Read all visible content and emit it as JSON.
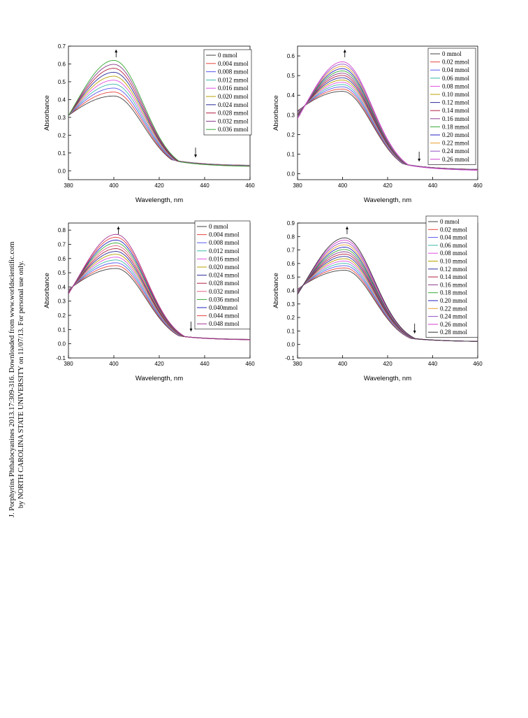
{
  "watermark": {
    "line1": "J. Porphyrins Phthalocyanines 2013.17:309-316. Downloaded from www.worldscientific.com",
    "line2": "by NORTH CAROLINA STATE UNIVERSITY on 11/07/13. For personal use only."
  },
  "chart_data": [
    {
      "type": "line",
      "panel": "top-left",
      "xlabel": "Wavelength, nm",
      "ylabel": "Absorbance",
      "xlim": [
        380,
        460
      ],
      "ylim": [
        -0.05,
        0.7
      ],
      "x_ticks": [
        "380",
        "400",
        "420",
        "440",
        "460"
      ],
      "y_ticks": [
        "0.0",
        "0.1",
        "0.2",
        "0.3",
        "0.4",
        "0.5",
        "0.6",
        "0.7"
      ],
      "legend_position": "top-right",
      "arrows": [
        "up at peak",
        "down at 436 nm"
      ],
      "series_shape": {
        "peak_x": 400,
        "start_y": [
          0.31,
          0.31
        ],
        "peak_y": [
          0.42,
          0.62
        ],
        "tail_y": [
          0.028,
          0.022
        ]
      },
      "series": [
        {
          "name": "0 mmol",
          "color": "#404040"
        },
        {
          "name": "0.004 mmol",
          "color": "#e8453c"
        },
        {
          "name": "0.008 mmol",
          "color": "#5858f0"
        },
        {
          "name": "0.012 mmol",
          "color": "#3cb8a8"
        },
        {
          "name": "0.016 mmol",
          "color": "#e050e0"
        },
        {
          "name": "0.020 mmol",
          "color": "#b8a000"
        },
        {
          "name": "0.024 mmol",
          "color": "#2a2a9a"
        },
        {
          "name": "0.028 mmol",
          "color": "#b02040"
        },
        {
          "name": "0.032 mmol",
          "color": "#8a3a8a"
        },
        {
          "name": "0.036 mmol",
          "color": "#38a838"
        }
      ]
    },
    {
      "type": "line",
      "panel": "top-right",
      "xlabel": "Wavelength, nm",
      "ylabel": "Absorbance",
      "xlim": [
        380,
        460
      ],
      "ylim": [
        -0.03,
        0.65
      ],
      "x_ticks": [
        "380",
        "400",
        "420",
        "440",
        "460"
      ],
      "y_ticks": [
        "0.0",
        "0.1",
        "0.2",
        "0.3",
        "0.4",
        "0.5",
        "0.6"
      ],
      "legend_position": "top-right",
      "arrows": [
        "up at peak",
        "down at 434 nm"
      ],
      "series_shape": {
        "peak_x": 400,
        "start_y": [
          0.32,
          0.28
        ],
        "peak_y": [
          0.42,
          0.57
        ],
        "tail_y": [
          0.02,
          0.015
        ]
      },
      "series": [
        {
          "name": "0 mmol",
          "color": "#404040"
        },
        {
          "name": "0.02 mmol",
          "color": "#e8453c"
        },
        {
          "name": "0.04 mmol",
          "color": "#5858f0"
        },
        {
          "name": "0.06 mmol",
          "color": "#3cb8a8"
        },
        {
          "name": "0.08 mmol",
          "color": "#e050e0"
        },
        {
          "name": "0.10 mmol",
          "color": "#b8a000"
        },
        {
          "name": "0.12 mmol",
          "color": "#2a2a9a"
        },
        {
          "name": "0.14 mmol",
          "color": "#b02040"
        },
        {
          "name": "0.16 mmol",
          "color": "#8a3a8a"
        },
        {
          "name": "0.18 mmol",
          "color": "#38a838"
        },
        {
          "name": "0.20 mmol",
          "color": "#2020c0"
        },
        {
          "name": "0.22 mmol",
          "color": "#e8a030"
        },
        {
          "name": "0.24 mmol",
          "color": "#9050c0"
        },
        {
          "name": "0.26 mmol",
          "color": "#d040d0"
        }
      ]
    },
    {
      "type": "line",
      "panel": "bottom-left",
      "xlabel": "Wavelength, nm",
      "ylabel": "Absorbance",
      "xlim": [
        380,
        460
      ],
      "ylim": [
        -0.1,
        0.85
      ],
      "x_ticks": [
        "380",
        "400",
        "420",
        "440",
        "460"
      ],
      "y_ticks": [
        "-0.1",
        "0.0",
        "0.1",
        "0.2",
        "0.3",
        "0.4",
        "0.5",
        "0.6",
        "0.7",
        "0.8"
      ],
      "legend_position": "top-right",
      "arrows": [
        "up at peak",
        "down at 434 nm"
      ],
      "series_shape": {
        "peak_x": 401,
        "start_y": [
          0.38,
          0.35
        ],
        "peak_y": [
          0.53,
          0.77
        ],
        "tail_y": [
          0.028,
          0.025
        ]
      },
      "series": [
        {
          "name": "0 mmol",
          "color": "#404040"
        },
        {
          "name": "0.004 mmol",
          "color": "#e8453c"
        },
        {
          "name": "0.008 mmol",
          "color": "#5858f0"
        },
        {
          "name": "0.012 mmol",
          "color": "#3cb8a8"
        },
        {
          "name": "0.016 mmol",
          "color": "#e050e0"
        },
        {
          "name": "0.020 mmol",
          "color": "#b8a000"
        },
        {
          "name": "0.024 mmol",
          "color": "#2a2a9a"
        },
        {
          "name": "0.028 mmol",
          "color": "#b02040"
        },
        {
          "name": "0.032 mmol",
          "color": "#e06080"
        },
        {
          "name": "0.036 mmol",
          "color": "#38a838"
        },
        {
          "name": "0.040mmol",
          "color": "#2020c0"
        },
        {
          "name": "0.044 mmol",
          "color": "#e84040"
        },
        {
          "name": "0.048 mmol",
          "color": "#a03090"
        }
      ]
    },
    {
      "type": "line",
      "panel": "bottom-right",
      "xlabel": "Wavelength, nm",
      "ylabel": "Absorbance",
      "xlim": [
        380,
        460
      ],
      "ylim": [
        -0.1,
        0.9
      ],
      "x_ticks": [
        "380",
        "400",
        "420",
        "440",
        "460"
      ],
      "y_ticks": [
        "-0.1",
        "0.0",
        "0.1",
        "0.2",
        "0.3",
        "0.4",
        "0.5",
        "0.6",
        "0.7",
        "0.8",
        "0.9"
      ],
      "legend_position": "top-right",
      "arrows": [
        "up at peak",
        "down at 432 nm"
      ],
      "series_shape": {
        "peak_x": 401,
        "start_y": [
          0.41,
          0.37
        ],
        "peak_y": [
          0.55,
          0.79
        ],
        "tail_y": [
          0.02,
          0.02
        ]
      },
      "series": [
        {
          "name": "0 mmol",
          "color": "#404040"
        },
        {
          "name": "0.02 mmol",
          "color": "#e8453c"
        },
        {
          "name": "0.04 mmol",
          "color": "#5858f0"
        },
        {
          "name": "0.06 mmol",
          "color": "#3cb8a8"
        },
        {
          "name": "0.08 mmol",
          "color": "#e050e0"
        },
        {
          "name": "0.10 mmol",
          "color": "#b8a000"
        },
        {
          "name": "0.12 mmol",
          "color": "#2a2a9a"
        },
        {
          "name": "0.14 mmol",
          "color": "#b02040"
        },
        {
          "name": "0.16 mmol",
          "color": "#8a3a8a"
        },
        {
          "name": "0.18 mmol",
          "color": "#38a838"
        },
        {
          "name": "0.20 mmol",
          "color": "#2020c0"
        },
        {
          "name": "0.22 mmol",
          "color": "#e8a030"
        },
        {
          "name": "0.24 mmol",
          "color": "#9050c0"
        },
        {
          "name": "0.26 mmol",
          "color": "#d040d0"
        },
        {
          "name": "0.28 mmol",
          "color": "#303030"
        }
      ]
    }
  ]
}
